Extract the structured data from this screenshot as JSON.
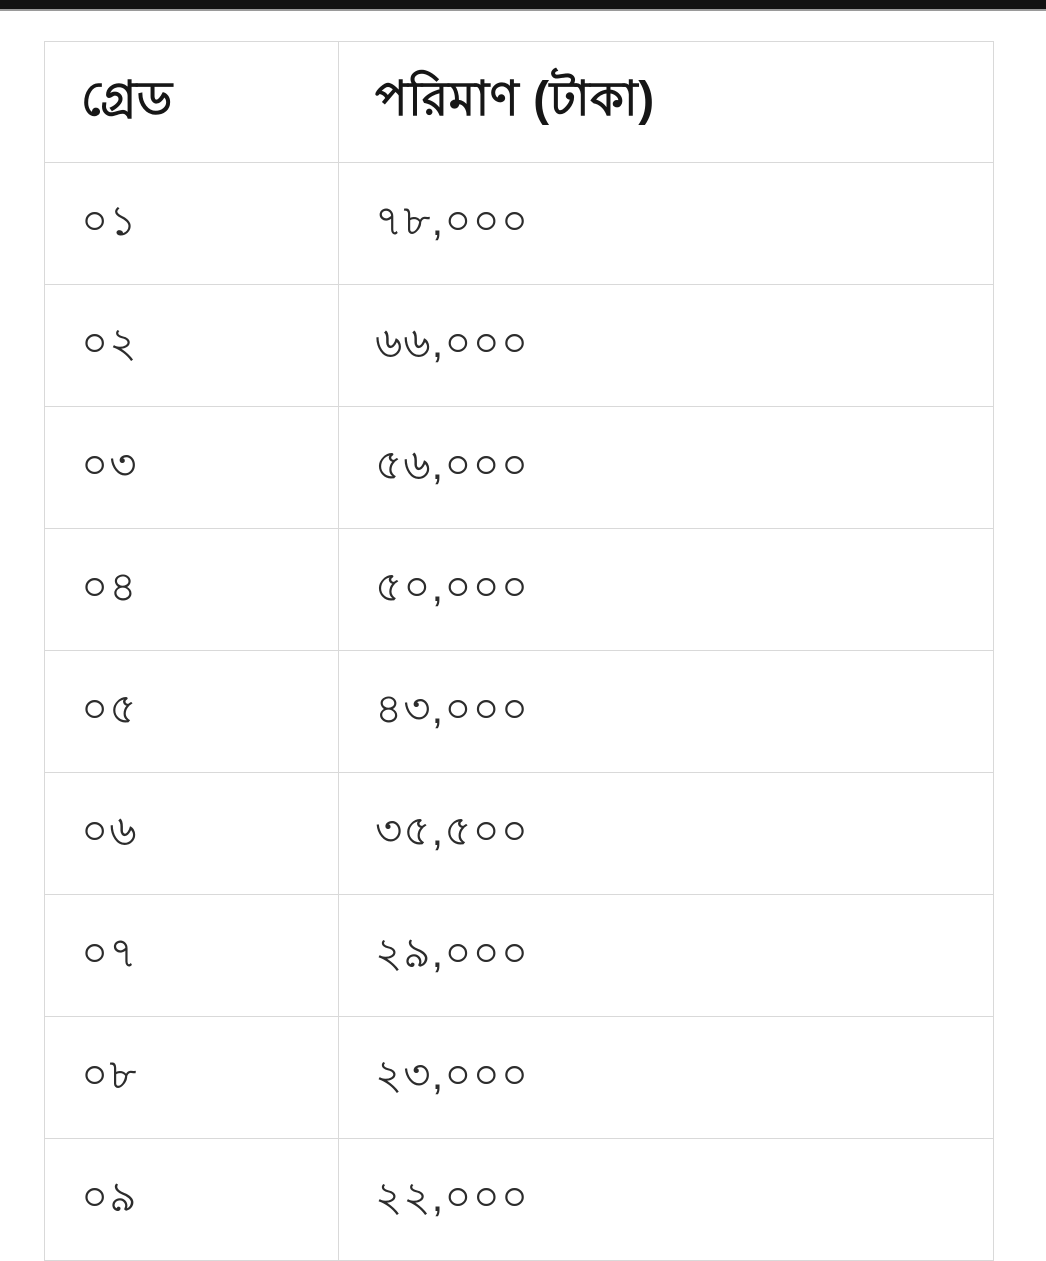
{
  "top_bar": {
    "description": "dark screen-edge strip"
  },
  "colors": {
    "background": "#ffffff",
    "border": "#d9d9d9",
    "text": "#2c2c2c",
    "header_text": "#161616",
    "top_bar": "#121212"
  },
  "table": {
    "headers": {
      "grade": "গ্রেড",
      "amount": "পরিমাণ (টাকা)"
    },
    "rows": [
      {
        "grade": "০১",
        "amount": "৭৮,০০০"
      },
      {
        "grade": "০২",
        "amount": "৬৬,০০০"
      },
      {
        "grade": "০৩",
        "amount": "৫৬,০০০"
      },
      {
        "grade": "০৪",
        "amount": "৫০,০০০"
      },
      {
        "grade": "০৫",
        "amount": "৪৩,০০০"
      },
      {
        "grade": "০৬",
        "amount": "৩৫,৫০০"
      },
      {
        "grade": "০৭",
        "amount": "২৯,০০০"
      },
      {
        "grade": "০৮",
        "amount": "২৩,০০০"
      },
      {
        "grade": "০৯",
        "amount": "২২,০০০"
      }
    ]
  }
}
